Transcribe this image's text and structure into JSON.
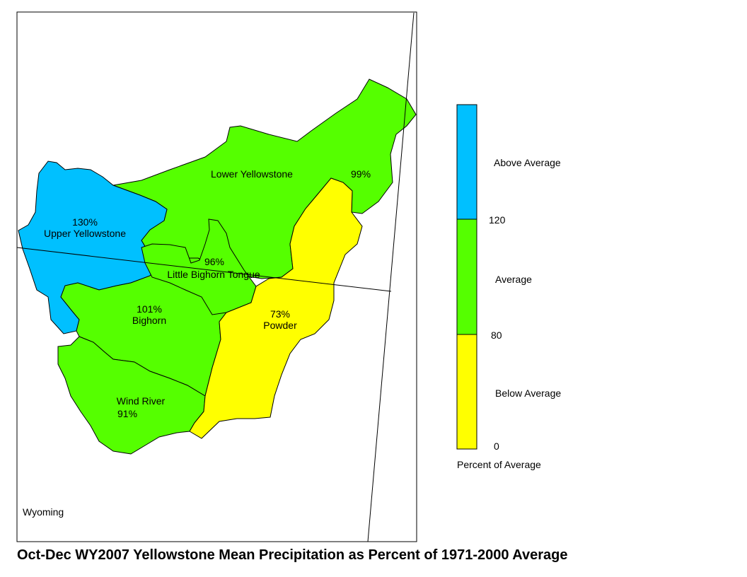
{
  "title": "Oct-Dec WY2007 Yellowstone Mean Precipitation as Percent of 1971-2000 Average",
  "state_label": "Wyoming",
  "basins": [
    {
      "name": "Upper Yellowstone",
      "pct": "130%",
      "color": "#00c0ff"
    },
    {
      "name": "Lower Yellowstone",
      "pct": "99%",
      "color": "#55ff00"
    },
    {
      "name": "Little Bighorn Tongue",
      "pct": "96%",
      "color": "#55ff00"
    },
    {
      "name": "Bighorn",
      "pct": "101%",
      "color": "#55ff00"
    },
    {
      "name": "Wind River",
      "pct": "91%",
      "color": "#55ff00"
    },
    {
      "name": "Powder",
      "pct": "73%",
      "color": "#ffff00"
    }
  ],
  "legend": {
    "caption": "Percent of Average",
    "classes": [
      {
        "label": "Above Average",
        "color": "#00c0ff"
      },
      {
        "label": "Average",
        "color": "#55ff00"
      },
      {
        "label": "Below Average",
        "color": "#ffff00"
      }
    ],
    "breaks": [
      "120",
      "80",
      "0"
    ]
  }
}
